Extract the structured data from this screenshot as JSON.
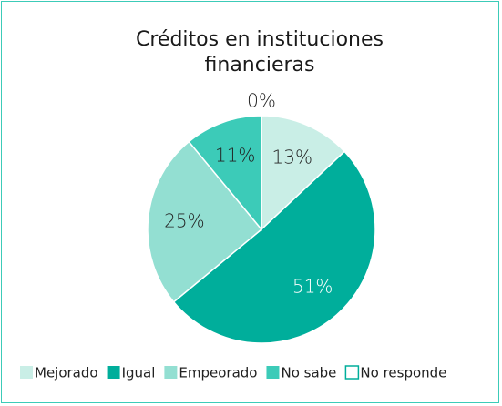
{
  "chart_data": {
    "type": "pie",
    "title": "Créditos en instituciones financieras",
    "categories": [
      "Mejorado",
      "Igual",
      "Empeorado",
      "No sabe",
      "No responde"
    ],
    "values": [
      13,
      51,
      25,
      11,
      0
    ],
    "value_labels": [
      "13%",
      "51%",
      "25%",
      "11%",
      "0%"
    ],
    "colors": [
      "#c9eee6",
      "#00ae9b",
      "#93dfd2",
      "#3ccbb8",
      "#ffffff"
    ],
    "legend": "bottom"
  }
}
